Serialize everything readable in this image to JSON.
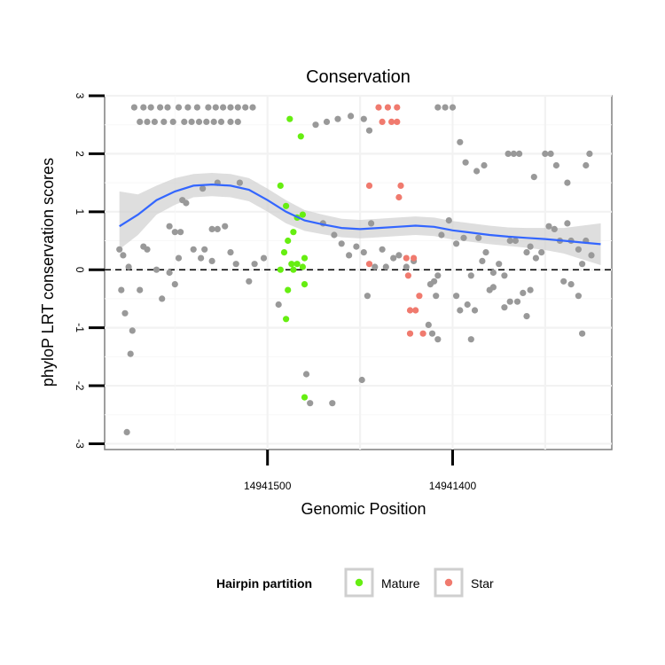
{
  "chart_data": {
    "type": "scatter",
    "title": "Conservation",
    "xlabel": "Genomic Position",
    "ylabel": "phyloP LRT conservation scores",
    "x_reversed": true,
    "xlim": [
      14941588,
      14941314
    ],
    "ylim": [
      -3.1,
      3.0
    ],
    "x_ticks": [
      14941500,
      14941400
    ],
    "y_ticks": [
      3,
      2,
      1,
      0,
      -1,
      -2,
      -3
    ],
    "y_tick_labels": [
      "3",
      "2",
      "1",
      "0",
      "-1",
      "-2",
      "-3"
    ],
    "x_tick_labels": [
      "14941500",
      "14941400"
    ],
    "grid": true,
    "reference_line": {
      "y": 0,
      "style": "dashed"
    },
    "legend": {
      "title": "Hairpin partition",
      "position": "bottom",
      "entries": [
        {
          "label": "Mature",
          "color": "#66ee11"
        },
        {
          "label": "Star",
          "color": "#f07a6e"
        }
      ]
    },
    "colors": {
      "other": "#999999",
      "Mature": "#66ee11",
      "Star": "#f07a6e",
      "smooth": "#3366ff",
      "band": "#cccccc"
    },
    "series": [
      {
        "name": "",
        "group": "other",
        "points": [
          [
            14941572,
            2.8
          ],
          [
            14941567,
            2.8
          ],
          [
            14941563,
            2.8
          ],
          [
            14941558,
            2.8
          ],
          [
            14941554,
            2.8
          ],
          [
            14941548,
            2.8
          ],
          [
            14941543,
            2.8
          ],
          [
            14941538,
            2.8
          ],
          [
            14941532,
            2.8
          ],
          [
            14941528,
            2.8
          ],
          [
            14941524,
            2.8
          ],
          [
            14941520,
            2.8
          ],
          [
            14941516,
            2.8
          ],
          [
            14941512,
            2.8
          ],
          [
            14941508,
            2.8
          ],
          [
            14941569,
            2.55
          ],
          [
            14941565,
            2.55
          ],
          [
            14941561,
            2.55
          ],
          [
            14941556,
            2.55
          ],
          [
            14941551,
            2.55
          ],
          [
            14941545,
            2.55
          ],
          [
            14941541,
            2.55
          ],
          [
            14941537,
            2.55
          ],
          [
            14941533,
            2.55
          ],
          [
            14941529,
            2.55
          ],
          [
            14941525,
            2.55
          ],
          [
            14941520,
            2.55
          ],
          [
            14941516,
            2.55
          ],
          [
            14941474,
            2.5
          ],
          [
            14941468,
            2.55
          ],
          [
            14941462,
            2.6
          ],
          [
            14941455,
            2.65
          ],
          [
            14941448,
            2.6
          ],
          [
            14941445,
            2.4
          ],
          [
            14941408,
            2.8
          ],
          [
            14941404,
            2.8
          ],
          [
            14941400,
            2.8
          ],
          [
            14941396,
            2.2
          ],
          [
            14941393,
            1.85
          ],
          [
            14941387,
            1.7
          ],
          [
            14941383,
            1.8
          ],
          [
            14941370,
            2.0
          ],
          [
            14941367,
            2.0
          ],
          [
            14941364,
            2.0
          ],
          [
            14941356,
            1.6
          ],
          [
            14941350,
            2.0
          ],
          [
            14941347,
            2.0
          ],
          [
            14941344,
            1.8
          ],
          [
            14941338,
            1.5
          ],
          [
            14941328,
            1.8
          ],
          [
            14941326,
            2.0
          ],
          [
            14941527,
            1.5
          ],
          [
            14941515,
            1.5
          ],
          [
            14941535,
            1.4
          ],
          [
            14941546,
            1.2
          ],
          [
            14941544,
            1.15
          ],
          [
            14941530,
            0.7
          ],
          [
            14941527,
            0.7
          ],
          [
            14941523,
            0.75
          ],
          [
            14941553,
            0.75
          ],
          [
            14941550,
            0.65
          ],
          [
            14941547,
            0.65
          ],
          [
            14941580,
            0.35
          ],
          [
            14941578,
            0.25
          ],
          [
            14941575,
            0.05
          ],
          [
            14941567,
            0.4
          ],
          [
            14941565,
            0.35
          ],
          [
            14941560,
            0.0
          ],
          [
            14941553,
            -0.05
          ],
          [
            14941548,
            0.2
          ],
          [
            14941540,
            0.35
          ],
          [
            14941536,
            0.2
          ],
          [
            14941534,
            0.35
          ],
          [
            14941530,
            0.15
          ],
          [
            14941520,
            0.3
          ],
          [
            14941517,
            0.1
          ],
          [
            14941507,
            0.1
          ],
          [
            14941502,
            0.2
          ],
          [
            14941470,
            0.8
          ],
          [
            14941464,
            0.6
          ],
          [
            14941460,
            0.45
          ],
          [
            14941456,
            0.25
          ],
          [
            14941452,
            0.4
          ],
          [
            14941448,
            0.3
          ],
          [
            14941444,
            0.8
          ],
          [
            14941442,
            0.05
          ],
          [
            14941438,
            0.35
          ],
          [
            14941436,
            0.05
          ],
          [
            14941432,
            0.2
          ],
          [
            14941429,
            0.25
          ],
          [
            14941425,
            0.05
          ],
          [
            14941421,
            0.15
          ],
          [
            14941410,
            -0.2
          ],
          [
            14941408,
            -0.1
          ],
          [
            14941406,
            0.6
          ],
          [
            14941402,
            0.85
          ],
          [
            14941398,
            0.45
          ],
          [
            14941394,
            0.55
          ],
          [
            14941390,
            -0.1
          ],
          [
            14941386,
            0.55
          ],
          [
            14941384,
            0.15
          ],
          [
            14941382,
            0.3
          ],
          [
            14941378,
            -0.05
          ],
          [
            14941375,
            0.1
          ],
          [
            14941372,
            -0.1
          ],
          [
            14941369,
            0.5
          ],
          [
            14941366,
            0.5
          ],
          [
            14941360,
            0.3
          ],
          [
            14941358,
            0.4
          ],
          [
            14941355,
            0.2
          ],
          [
            14941352,
            0.3
          ],
          [
            14941348,
            0.75
          ],
          [
            14941345,
            0.7
          ],
          [
            14941342,
            0.5
          ],
          [
            14941338,
            0.8
          ],
          [
            14941336,
            0.5
          ],
          [
            14941332,
            0.35
          ],
          [
            14941330,
            0.1
          ],
          [
            14941328,
            0.5
          ],
          [
            14941325,
            0.25
          ],
          [
            14941579,
            -0.35
          ],
          [
            14941577,
            -0.75
          ],
          [
            14941573,
            -1.05
          ],
          [
            14941574,
            -1.45
          ],
          [
            14941569,
            -0.35
          ],
          [
            14941557,
            -0.5
          ],
          [
            14941550,
            -0.25
          ],
          [
            14941510,
            -0.2
          ],
          [
            14941494,
            -0.6
          ],
          [
            14941446,
            -0.45
          ],
          [
            14941412,
            -0.25
          ],
          [
            14941409,
            -0.45
          ],
          [
            14941413,
            -0.95
          ],
          [
            14941411,
            -1.1
          ],
          [
            14941408,
            -1.2
          ],
          [
            14941398,
            -0.45
          ],
          [
            14941396,
            -0.7
          ],
          [
            14941392,
            -0.6
          ],
          [
            14941390,
            -1.2
          ],
          [
            14941388,
            -0.7
          ],
          [
            14941380,
            -0.35
          ],
          [
            14941378,
            -0.3
          ],
          [
            14941372,
            -0.65
          ],
          [
            14941369,
            -0.55
          ],
          [
            14941365,
            -0.55
          ],
          [
            14941358,
            -0.35
          ],
          [
            14941362,
            -0.4
          ],
          [
            14941360,
            -0.8
          ],
          [
            14941340,
            -0.2
          ],
          [
            14941336,
            -0.25
          ],
          [
            14941332,
            -0.45
          ],
          [
            14941330,
            -1.1
          ],
          [
            14941479,
            -1.8
          ],
          [
            14941477,
            -2.3
          ],
          [
            14941465,
            -2.3
          ],
          [
            14941449,
            -1.9
          ],
          [
            14941576,
            -2.8
          ]
        ]
      },
      {
        "name": "Mature",
        "group": "Mature",
        "points": [
          [
            14941488,
            2.6
          ],
          [
            14941482,
            2.3
          ],
          [
            14941493,
            1.45
          ],
          [
            14941490,
            1.1
          ],
          [
            14941486,
            0.65
          ],
          [
            14941484,
            0.9
          ],
          [
            14941481,
            0.95
          ],
          [
            14941489,
            0.5
          ],
          [
            14941491,
            0.3
          ],
          [
            14941487,
            0.1
          ],
          [
            14941484,
            0.1
          ],
          [
            14941486,
            0.0
          ],
          [
            14941493,
            0.0
          ],
          [
            14941480,
            0.2
          ],
          [
            14941481,
            0.05
          ],
          [
            14941489,
            -0.35
          ],
          [
            14941480,
            -0.25
          ],
          [
            14941490,
            -0.85
          ],
          [
            14941480,
            -2.2
          ]
        ]
      },
      {
        "name": "Star",
        "group": "Star",
        "points": [
          [
            14941440,
            2.8
          ],
          [
            14941435,
            2.8
          ],
          [
            14941430,
            2.8
          ],
          [
            14941438,
            2.55
          ],
          [
            14941433,
            2.55
          ],
          [
            14941430,
            2.55
          ],
          [
            14941428,
            1.45
          ],
          [
            14941445,
            1.45
          ],
          [
            14941429,
            1.25
          ],
          [
            14941425,
            0.2
          ],
          [
            14941421,
            0.2
          ],
          [
            14941445,
            0.1
          ],
          [
            14941424,
            -0.1
          ],
          [
            14941418,
            -0.45
          ],
          [
            14941423,
            -0.7
          ],
          [
            14941420,
            -0.7
          ],
          [
            14941423,
            -1.1
          ],
          [
            14941416,
            -1.1
          ]
        ]
      }
    ],
    "smooth": {
      "method": "loess",
      "fit": [
        [
          14941580,
          0.75
        ],
        [
          14941570,
          0.95
        ],
        [
          14941560,
          1.2
        ],
        [
          14941550,
          1.35
        ],
        [
          14941540,
          1.45
        ],
        [
          14941530,
          1.47
        ],
        [
          14941520,
          1.45
        ],
        [
          14941510,
          1.38
        ],
        [
          14941500,
          1.2
        ],
        [
          14941490,
          1.0
        ],
        [
          14941480,
          0.85
        ],
        [
          14941470,
          0.78
        ],
        [
          14941460,
          0.72
        ],
        [
          14941450,
          0.7
        ],
        [
          14941440,
          0.72
        ],
        [
          14941430,
          0.74
        ],
        [
          14941420,
          0.76
        ],
        [
          14941410,
          0.74
        ],
        [
          14941400,
          0.68
        ],
        [
          14941390,
          0.64
        ],
        [
          14941380,
          0.6
        ],
        [
          14941370,
          0.57
        ],
        [
          14941360,
          0.55
        ],
        [
          14941350,
          0.53
        ],
        [
          14941340,
          0.5
        ],
        [
          14941330,
          0.47
        ],
        [
          14941320,
          0.44
        ]
      ],
      "band": [
        [
          14941580,
          0.35,
          1.35
        ],
        [
          14941570,
          0.6,
          1.3
        ],
        [
          14941560,
          0.95,
          1.45
        ],
        [
          14941550,
          1.12,
          1.58
        ],
        [
          14941540,
          1.25,
          1.65
        ],
        [
          14941530,
          1.27,
          1.67
        ],
        [
          14941520,
          1.25,
          1.65
        ],
        [
          14941510,
          1.18,
          1.58
        ],
        [
          14941500,
          1.0,
          1.4
        ],
        [
          14941490,
          0.8,
          1.2
        ],
        [
          14941480,
          0.67,
          1.03
        ],
        [
          14941470,
          0.61,
          0.95
        ],
        [
          14941460,
          0.56,
          0.88
        ],
        [
          14941450,
          0.54,
          0.86
        ],
        [
          14941440,
          0.56,
          0.88
        ],
        [
          14941430,
          0.58,
          0.9
        ],
        [
          14941420,
          0.6,
          0.92
        ],
        [
          14941410,
          0.58,
          0.9
        ],
        [
          14941400,
          0.52,
          0.84
        ],
        [
          14941390,
          0.48,
          0.8
        ],
        [
          14941380,
          0.44,
          0.76
        ],
        [
          14941370,
          0.41,
          0.73
        ],
        [
          14941360,
          0.38,
          0.72
        ],
        [
          14941350,
          0.34,
          0.72
        ],
        [
          14941340,
          0.28,
          0.72
        ],
        [
          14941330,
          0.18,
          0.76
        ],
        [
          14941320,
          0.08,
          0.8
        ]
      ]
    }
  }
}
